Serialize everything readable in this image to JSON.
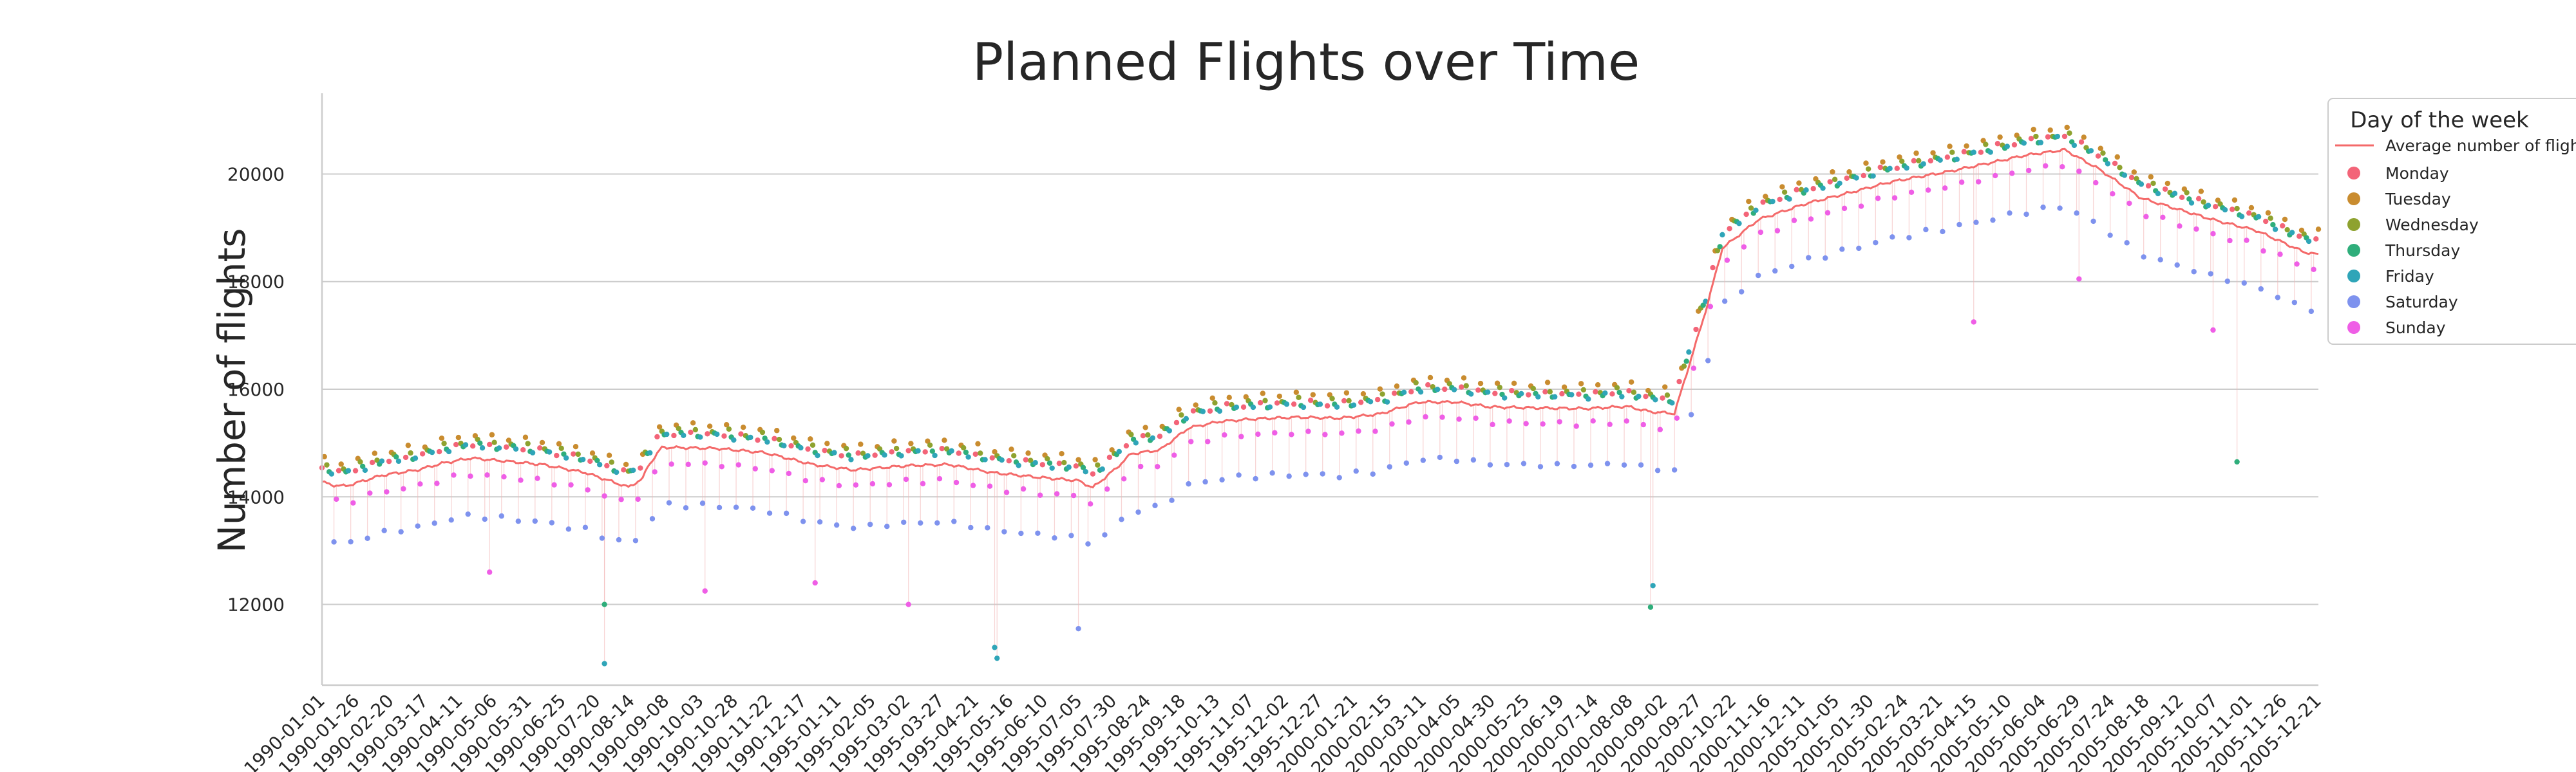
{
  "chart_data": {
    "type": "scatter",
    "title": "Planned Flights over Time",
    "xlabel": "",
    "ylabel": "Number of flights",
    "ylim": [
      10500,
      21500
    ],
    "yticks": [
      12000,
      14000,
      16000,
      18000,
      20000
    ],
    "xticks": [
      "1990-01-01",
      "1990-01-26",
      "1990-02-20",
      "1990-03-17",
      "1990-04-11",
      "1990-05-06",
      "1990-05-31",
      "1990-06-25",
      "1990-07-20",
      "1990-08-14",
      "1990-09-08",
      "1990-10-03",
      "1990-10-28",
      "1990-11-22",
      "1990-12-17",
      "1995-01-11",
      "1995-02-05",
      "1995-03-02",
      "1995-03-27",
      "1995-04-21",
      "1995-05-16",
      "1995-06-10",
      "1995-07-05",
      "1995-07-30",
      "1995-08-24",
      "1995-09-18",
      "1995-10-13",
      "1995-11-07",
      "1995-12-02",
      "1995-12-27",
      "2000-01-21",
      "2000-02-15",
      "2000-03-11",
      "2000-04-05",
      "2000-04-30",
      "2000-05-25",
      "2000-06-19",
      "2000-07-14",
      "2000-08-08",
      "2000-09-02",
      "2000-09-27",
      "2000-10-22",
      "2000-11-16",
      "2000-12-11",
      "2005-01-05",
      "2005-01-30",
      "2005-02-24",
      "2005-03-21",
      "2005-04-15",
      "2005-05-10",
      "2005-06-04",
      "2005-06-29",
      "2005-07-24",
      "2005-08-18",
      "2005-09-12",
      "2005-10-07",
      "2005-11-01",
      "2005-11-26",
      "2005-12-21"
    ],
    "grid": "horizontal",
    "legend": {
      "title": "Day of the week",
      "placement": "top-right",
      "line_label": "Average number of flights"
    },
    "colors": {
      "average": "#f46a6a",
      "Monday": "#f36478",
      "Tuesday": "#c98c2f",
      "Wednesday": "#8ea22f",
      "Thursday": "#2fae7b",
      "Friday": "#2fa5b8",
      "Saturday": "#7e92ee",
      "Sunday": "#ef5ee6"
    },
    "period_avg_keyframes": [
      [
        0,
        14280
      ],
      [
        4,
        14220
      ],
      [
        10,
        14200
      ],
      [
        25,
        14400
      ],
      [
        40,
        14500
      ],
      [
        50,
        14620
      ],
      [
        62,
        14720
      ],
      [
        80,
        14650
      ],
      [
        92,
        14600
      ],
      [
        110,
        14450
      ],
      [
        128,
        14180
      ],
      [
        134,
        14340
      ],
      [
        136,
        14560
      ],
      [
        142,
        14920
      ],
      [
        165,
        14900
      ],
      [
        185,
        14820
      ],
      [
        205,
        14600
      ],
      [
        222,
        14500
      ],
      [
        245,
        14580
      ],
      [
        262,
        14600
      ],
      [
        280,
        14450
      ],
      [
        300,
        14360
      ],
      [
        316,
        14300
      ],
      [
        322,
        14170
      ],
      [
        332,
        14540
      ],
      [
        338,
        14800
      ],
      [
        350,
        14870
      ],
      [
        362,
        15280
      ],
      [
        375,
        15400
      ],
      [
        390,
        15450
      ],
      [
        408,
        15480
      ],
      [
        425,
        15460
      ],
      [
        442,
        15540
      ],
      [
        458,
        15760
      ],
      [
        474,
        15760
      ],
      [
        488,
        15670
      ],
      [
        510,
        15650
      ],
      [
        528,
        15640
      ],
      [
        545,
        15680
      ],
      [
        555,
        15580
      ],
      [
        565,
        15550
      ],
      [
        578,
        17450
      ],
      [
        585,
        18620
      ],
      [
        600,
        19150
      ],
      [
        620,
        19450
      ],
      [
        638,
        19650
      ],
      [
        655,
        19850
      ],
      [
        680,
        20050
      ],
      [
        712,
        20350
      ],
      [
        728,
        20450
      ],
      [
        742,
        20100
      ],
      [
        760,
        19550
      ],
      [
        790,
        19150
      ],
      [
        808,
        18950
      ],
      [
        818,
        18750
      ],
      [
        828,
        18550
      ],
      [
        834,
        18500
      ]
    ],
    "period_offsets": {
      "Monday": 260,
      "Tuesday": 420,
      "Wednesday": 320,
      "Thursday": 250,
      "Friday": 240,
      "Saturday": -1050,
      "Sunday": -290
    },
    "outliers": [
      {
        "day": "Friday",
        "index": 118,
        "value": 10900
      },
      {
        "day": "Thursday",
        "index": 118,
        "value": 12000
      },
      {
        "day": "Friday",
        "index": 282,
        "value": 11000
      },
      {
        "day": "Friday",
        "index": 281,
        "value": 11200
      },
      {
        "day": "Saturday",
        "index": 316,
        "value": 11550
      },
      {
        "day": "Sunday",
        "index": 160,
        "value": 12250
      },
      {
        "day": "Sunday",
        "index": 245,
        "value": 12000
      },
      {
        "day": "Sunday",
        "index": 70,
        "value": 12600
      },
      {
        "day": "Sunday",
        "index": 206,
        "value": 12400
      },
      {
        "day": "Thursday",
        "index": 555,
        "value": 11950
      },
      {
        "day": "Friday",
        "index": 556,
        "value": 12350
      },
      {
        "day": "Thursday",
        "index": 800,
        "value": 14650
      },
      {
        "day": "Sunday",
        "index": 790,
        "value": 17100
      },
      {
        "day": "Sunday",
        "index": 690,
        "value": 17250
      },
      {
        "day": "Sunday",
        "index": 734,
        "value": 18050
      }
    ]
  }
}
